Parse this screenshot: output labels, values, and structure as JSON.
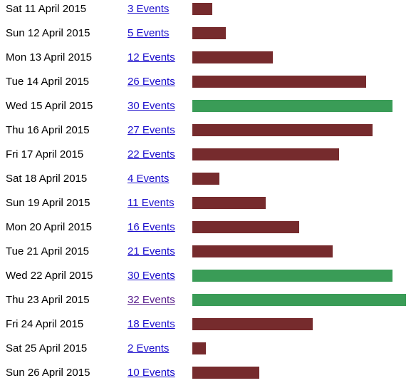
{
  "colors": {
    "bar_default": "#762b2d",
    "bar_high": "#3a9c57",
    "link": "#1a0dcc",
    "link_visited": "#551a8b"
  },
  "days": [
    {
      "date": "Sat 11 April 2015",
      "events_label": "3 Events",
      "count": 3,
      "highlight": false,
      "visited": false
    },
    {
      "date": "Sun 12 April 2015",
      "events_label": "5 Events",
      "count": 5,
      "highlight": false,
      "visited": false
    },
    {
      "date": "Mon 13 April 2015",
      "events_label": "12 Events",
      "count": 12,
      "highlight": false,
      "visited": false
    },
    {
      "date": "Tue 14 April 2015",
      "events_label": "26 Events",
      "count": 26,
      "highlight": false,
      "visited": false
    },
    {
      "date": "Wed 15 April 2015",
      "events_label": "30 Events",
      "count": 30,
      "highlight": true,
      "visited": false
    },
    {
      "date": "Thu 16 April 2015",
      "events_label": "27 Events",
      "count": 27,
      "highlight": false,
      "visited": false
    },
    {
      "date": "Fri 17 April 2015",
      "events_label": "22 Events",
      "count": 22,
      "highlight": false,
      "visited": false
    },
    {
      "date": "Sat 18 April 2015",
      "events_label": "4 Events",
      "count": 4,
      "highlight": false,
      "visited": false
    },
    {
      "date": "Sun 19 April 2015",
      "events_label": "11 Events",
      "count": 11,
      "highlight": false,
      "visited": false
    },
    {
      "date": "Mon 20 April 2015",
      "events_label": "16 Events",
      "count": 16,
      "highlight": false,
      "visited": false
    },
    {
      "date": "Tue 21 April 2015",
      "events_label": "21 Events",
      "count": 21,
      "highlight": false,
      "visited": false
    },
    {
      "date": "Wed 22 April 2015",
      "events_label": "30 Events",
      "count": 30,
      "highlight": true,
      "visited": false
    },
    {
      "date": "Thu 23 April 2015",
      "events_label": "32 Events",
      "count": 32,
      "highlight": true,
      "visited": true
    },
    {
      "date": "Fri 24 April 2015",
      "events_label": "18 Events",
      "count": 18,
      "highlight": false,
      "visited": false
    },
    {
      "date": "Sat 25 April 2015",
      "events_label": "2 Events",
      "count": 2,
      "highlight": false,
      "visited": false
    },
    {
      "date": "Sun 26 April 2015",
      "events_label": "10 Events",
      "count": 10,
      "highlight": false,
      "visited": false
    }
  ]
}
